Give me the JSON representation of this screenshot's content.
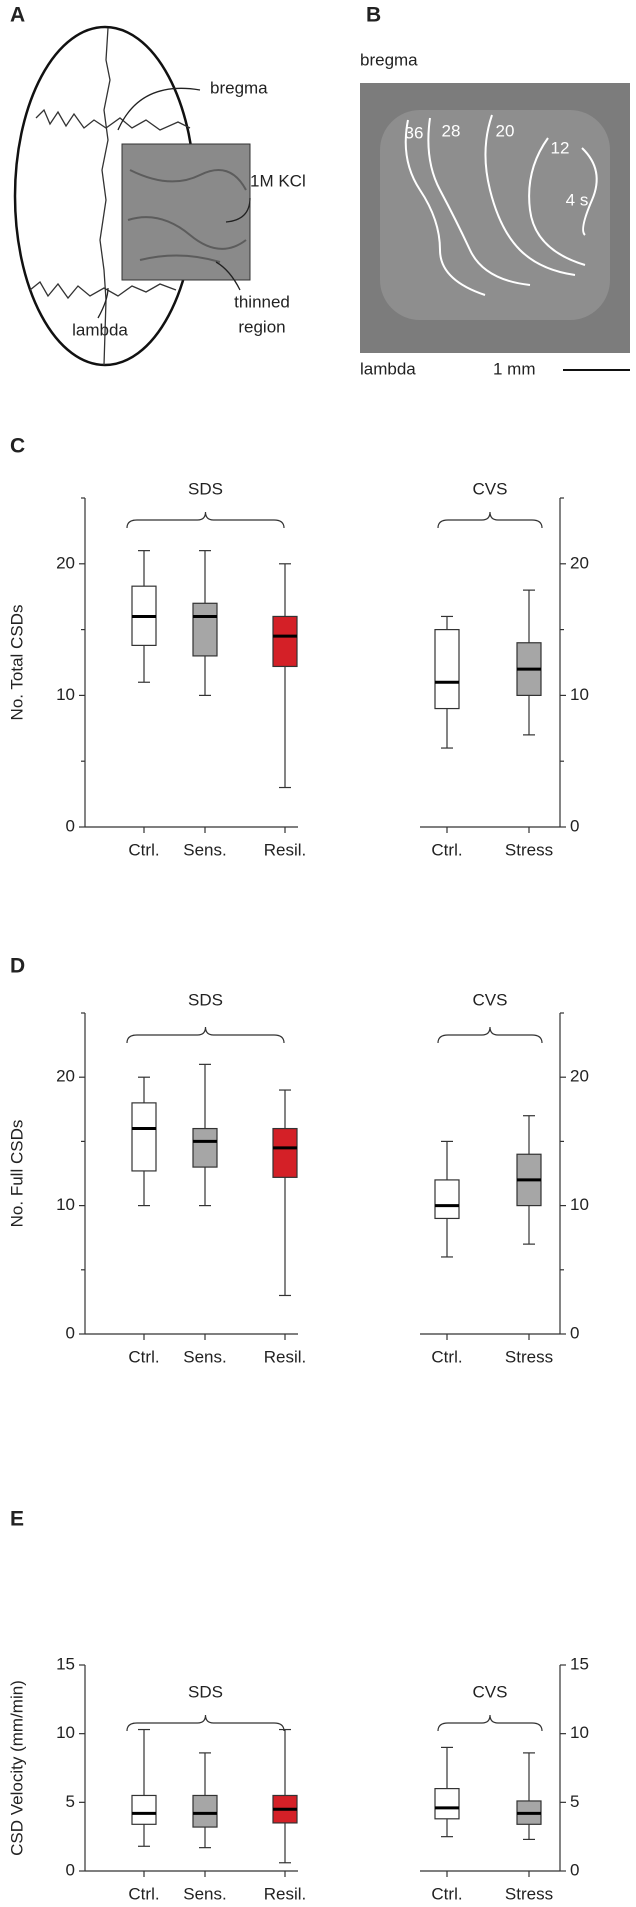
{
  "panels": {
    "A": {
      "label": "A",
      "bregma": "bregma",
      "kcl": "1M KCl",
      "lambda": "lambda",
      "thinned": [
        "thinned",
        "region"
      ]
    },
    "B": {
      "label": "B",
      "bregma": "bregma",
      "lambda": "lambda",
      "scale": "1 mm",
      "wave_labels": [
        "36",
        "28",
        "20",
        "12",
        "4 s"
      ]
    }
  },
  "chart_data": [
    {
      "type": "box",
      "panel": "C",
      "ylabel": "No. Total CSDs",
      "ylim": [
        0,
        25
      ],
      "yticks": [
        0,
        10,
        20
      ],
      "minor_yticks": [
        5,
        15,
        25
      ],
      "groups": [
        {
          "name": "SDS",
          "categories": [
            "Ctrl.",
            "Sens.",
            "Resil."
          ],
          "colors": [
            "#ffffff",
            "#a6a6a6",
            "#d42027"
          ],
          "boxes": [
            {
              "min": 11,
              "q1": 13.8,
              "median": 16,
              "q3": 18.3,
              "max": 21
            },
            {
              "min": 10,
              "q1": 13,
              "median": 16,
              "q3": 17,
              "max": 21
            },
            {
              "min": 3,
              "q1": 12.2,
              "median": 14.5,
              "q3": 16,
              "max": 20
            }
          ]
        },
        {
          "name": "CVS",
          "categories": [
            "Ctrl.",
            "Stress"
          ],
          "colors": [
            "#ffffff",
            "#a6a6a6"
          ],
          "boxes": [
            {
              "min": 6,
              "q1": 9,
              "median": 11,
              "q3": 15,
              "max": 16
            },
            {
              "min": 7,
              "q1": 10,
              "median": 12,
              "q3": 14,
              "max": 18
            }
          ]
        }
      ]
    },
    {
      "type": "box",
      "panel": "D",
      "ylabel": "No. Full CSDs",
      "ylim": [
        0,
        25
      ],
      "yticks": [
        0,
        10,
        20
      ],
      "minor_yticks": [
        5,
        15,
        25
      ],
      "groups": [
        {
          "name": "SDS",
          "categories": [
            "Ctrl.",
            "Sens.",
            "Resil."
          ],
          "colors": [
            "#ffffff",
            "#a6a6a6",
            "#d42027"
          ],
          "boxes": [
            {
              "min": 10,
              "q1": 12.7,
              "median": 16,
              "q3": 18,
              "max": 20
            },
            {
              "min": 10,
              "q1": 13,
              "median": 15,
              "q3": 16,
              "max": 21
            },
            {
              "min": 3,
              "q1": 12.2,
              "median": 14.5,
              "q3": 16,
              "max": 19
            }
          ]
        },
        {
          "name": "CVS",
          "categories": [
            "Ctrl.",
            "Stress"
          ],
          "colors": [
            "#ffffff",
            "#a6a6a6"
          ],
          "boxes": [
            {
              "min": 6,
              "q1": 9,
              "median": 10,
              "q3": 12,
              "max": 15
            },
            {
              "min": 7,
              "q1": 10,
              "median": 12,
              "q3": 14,
              "max": 17
            }
          ]
        }
      ]
    },
    {
      "type": "box",
      "panel": "E",
      "ylabel": "CSD Velocity (mm/min)",
      "ylim": [
        0,
        15
      ],
      "yticks": [
        0,
        5,
        10,
        15
      ],
      "minor_yticks": [],
      "groups": [
        {
          "name": "SDS",
          "categories": [
            "Ctrl.",
            "Sens.",
            "Resil."
          ],
          "colors": [
            "#ffffff",
            "#a6a6a6",
            "#d42027"
          ],
          "boxes": [
            {
              "min": 1.8,
              "q1": 3.4,
              "median": 4.2,
              "q3": 5.5,
              "max": 10.3
            },
            {
              "min": 1.7,
              "q1": 3.2,
              "median": 4.2,
              "q3": 5.5,
              "max": 8.6
            },
            {
              "min": 0.6,
              "q1": 3.5,
              "median": 4.5,
              "q3": 5.5,
              "max": 10.3
            }
          ]
        },
        {
          "name": "CVS",
          "categories": [
            "Ctrl.",
            "Stress"
          ],
          "colors": [
            "#ffffff",
            "#a6a6a6"
          ],
          "boxes": [
            {
              "min": 2.5,
              "q1": 3.8,
              "median": 4.6,
              "q3": 6.0,
              "max": 9.0
            },
            {
              "min": 2.3,
              "q1": 3.4,
              "median": 4.2,
              "q3": 5.1,
              "max": 8.6
            }
          ]
        }
      ]
    }
  ]
}
